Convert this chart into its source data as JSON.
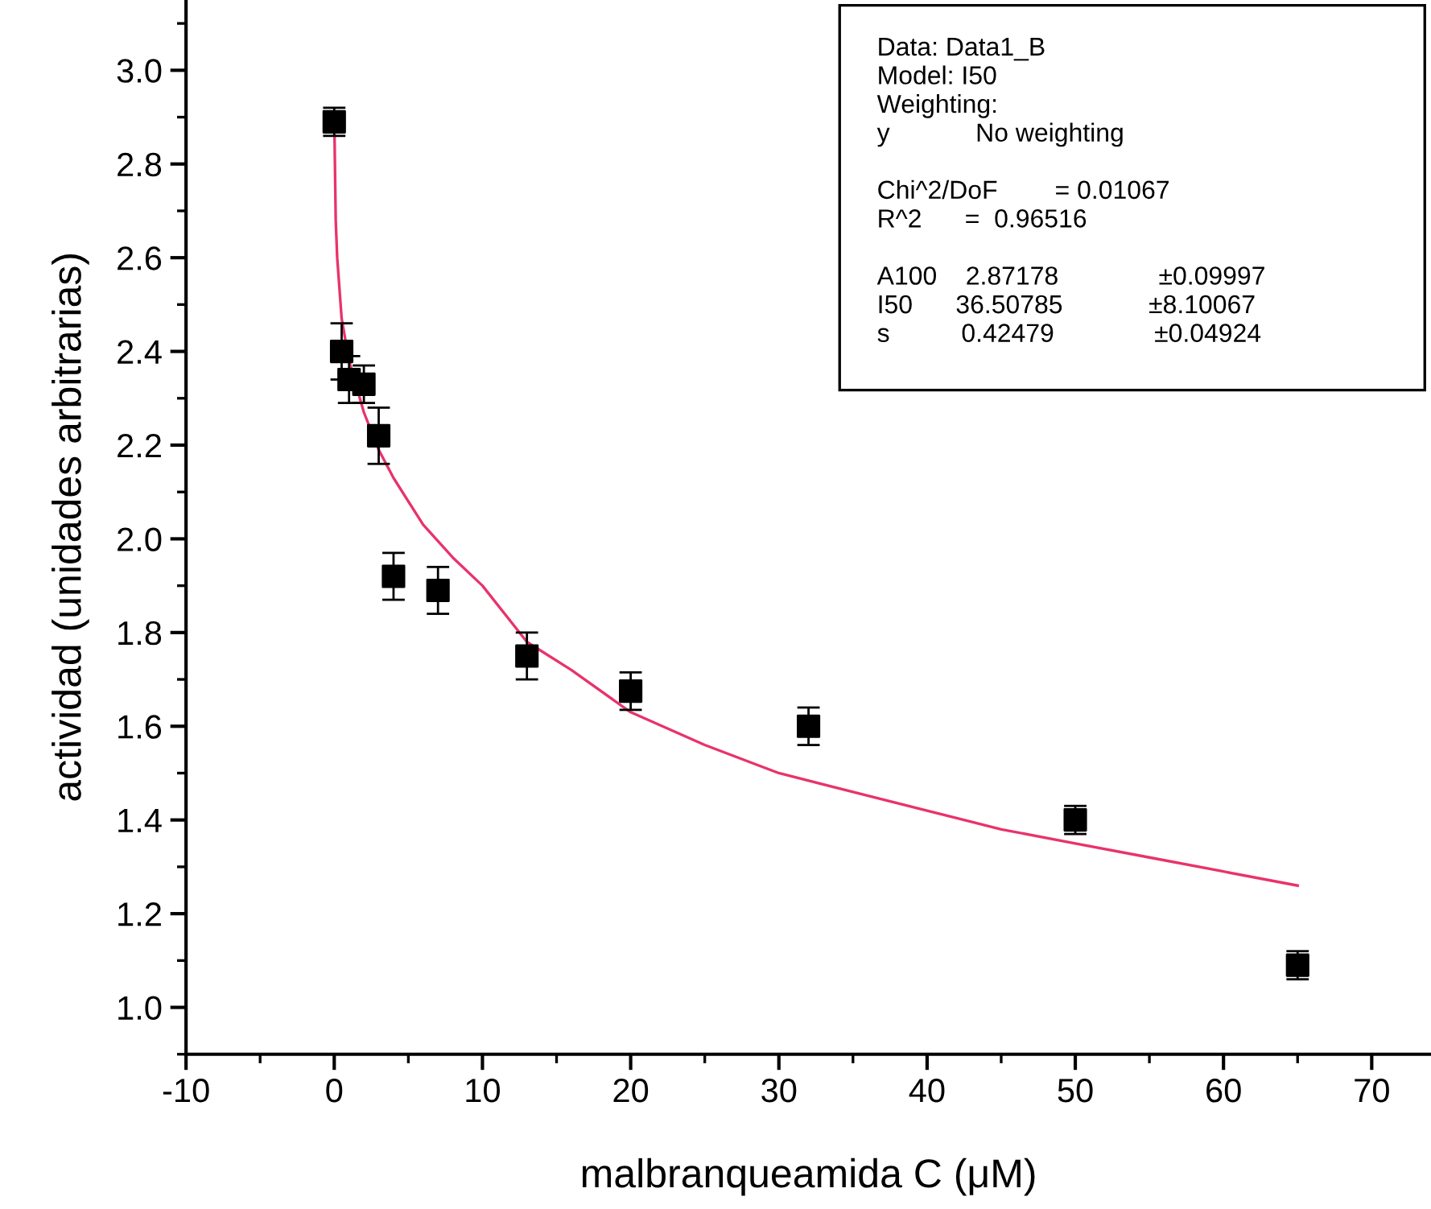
{
  "chart_data": {
    "type": "scatter",
    "xlabel": "malbranqueamida C (μM)",
    "ylabel": "actividad (unidades arbitrarias)",
    "xlim": [
      -10,
      74
    ],
    "ylim": [
      0.9,
      3.15
    ],
    "xticks": [
      -10,
      0,
      10,
      20,
      30,
      40,
      50,
      60,
      70
    ],
    "yticks": [
      {
        "value": 1.0,
        "label": "1.0"
      },
      1.2,
      1.4,
      1.6,
      1.8,
      {
        "value": 2.0,
        "label": "2.0"
      },
      2.2,
      2.4,
      2.6,
      2.8,
      {
        "value": 3.0,
        "label": "3.0"
      }
    ],
    "grid": false,
    "legend": false,
    "marker": "square",
    "series": [
      {
        "color": "#000000",
        "x": [
          0,
          0.5,
          1,
          2,
          3,
          4,
          7,
          13,
          20,
          32,
          50,
          65
        ],
        "values": [
          2.89,
          2.4,
          2.34,
          2.33,
          2.22,
          1.92,
          1.89,
          1.75,
          1.675,
          1.6,
          1.4,
          1.09
        ],
        "errors": [
          0.03,
          0.06,
          0.05,
          0.04,
          0.06,
          0.05,
          0.05,
          0.05,
          0.04,
          0.04,
          0.03,
          0.03
        ]
      },
      {
        "type": "line",
        "color": "#e8336b",
        "marker": "none",
        "line_style": "solid",
        "x": [
          0.02,
          0.1,
          0.2,
          0.5,
          1,
          2,
          3,
          4,
          6,
          8,
          10,
          13,
          16,
          20,
          25,
          30,
          35,
          40,
          45,
          50,
          55,
          60,
          65
        ],
        "values": [
          2.86,
          2.68,
          2.6,
          2.47,
          2.38,
          2.27,
          2.19,
          2.13,
          2.03,
          1.96,
          1.9,
          1.78,
          1.72,
          1.63,
          1.56,
          1.5,
          1.46,
          1.42,
          1.38,
          1.35,
          1.32,
          1.29,
          1.26
        ]
      }
    ],
    "annotations": [
      "Data: Data1_B\nModel: I50\nWeighting:\ny            No weighting",
      "Chi^2/DoF        = 0.01067\nR^2      =  0.96516",
      "A100    2.87178              ±0.09997\nI50      36.50785            ±8.10067\ns          0.42479              ±0.04924"
    ]
  }
}
